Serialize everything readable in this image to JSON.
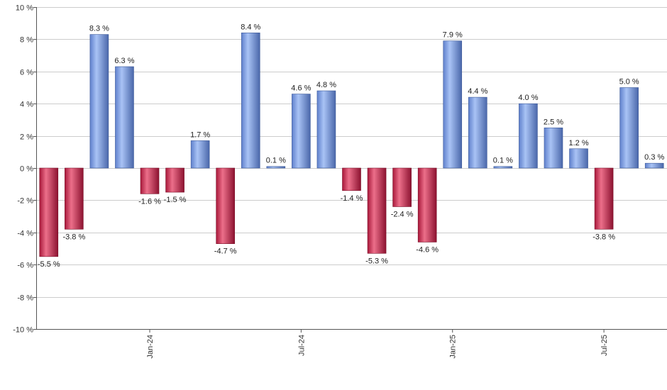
{
  "chart_data": {
    "type": "bar",
    "ylim": [
      -10,
      10
    ],
    "yticks": [
      -10,
      -8,
      -6,
      -4,
      -2,
      0,
      2,
      4,
      6,
      8,
      10
    ],
    "ytick_suffix": " %",
    "grid": true,
    "legend": "none",
    "xtick_labels": [
      {
        "label": "Jan-24",
        "index": 4
      },
      {
        "label": "Jul-24",
        "index": 10
      },
      {
        "label": "Jan-25",
        "index": 16
      },
      {
        "label": "Jul-25",
        "index": 22
      }
    ],
    "values": [
      -5.5,
      -3.8,
      8.3,
      6.3,
      -1.6,
      -1.5,
      1.7,
      -4.7,
      8.4,
      0.1,
      4.6,
      4.8,
      -1.4,
      -5.3,
      -2.4,
      -4.6,
      7.9,
      4.4,
      0.1,
      4.0,
      2.5,
      1.2,
      -3.8,
      5.0,
      0.3
    ],
    "data_labels": [
      "-5.5 %",
      "-3.8 %",
      "8.3 %",
      "6.3 %",
      "-1.6 %",
      "-1.5 %",
      "1.7 %",
      "-4.7 %",
      "8.4 %",
      "0.1 %",
      "4.6 %",
      "4.8 %",
      "-1.4 %",
      "-5.3 %",
      "-2.4 %",
      "-4.6 %",
      "7.9 %",
      "4.4 %",
      "0.1 %",
      "4.0 %",
      "2.5 %",
      "1.2 %",
      "-3.8 %",
      "5.0 %",
      "0.3 %"
    ],
    "colors": {
      "positive": "#7d9ee0",
      "negative": "#d04060",
      "grid": "#cccccc",
      "axis": "#555555"
    }
  }
}
